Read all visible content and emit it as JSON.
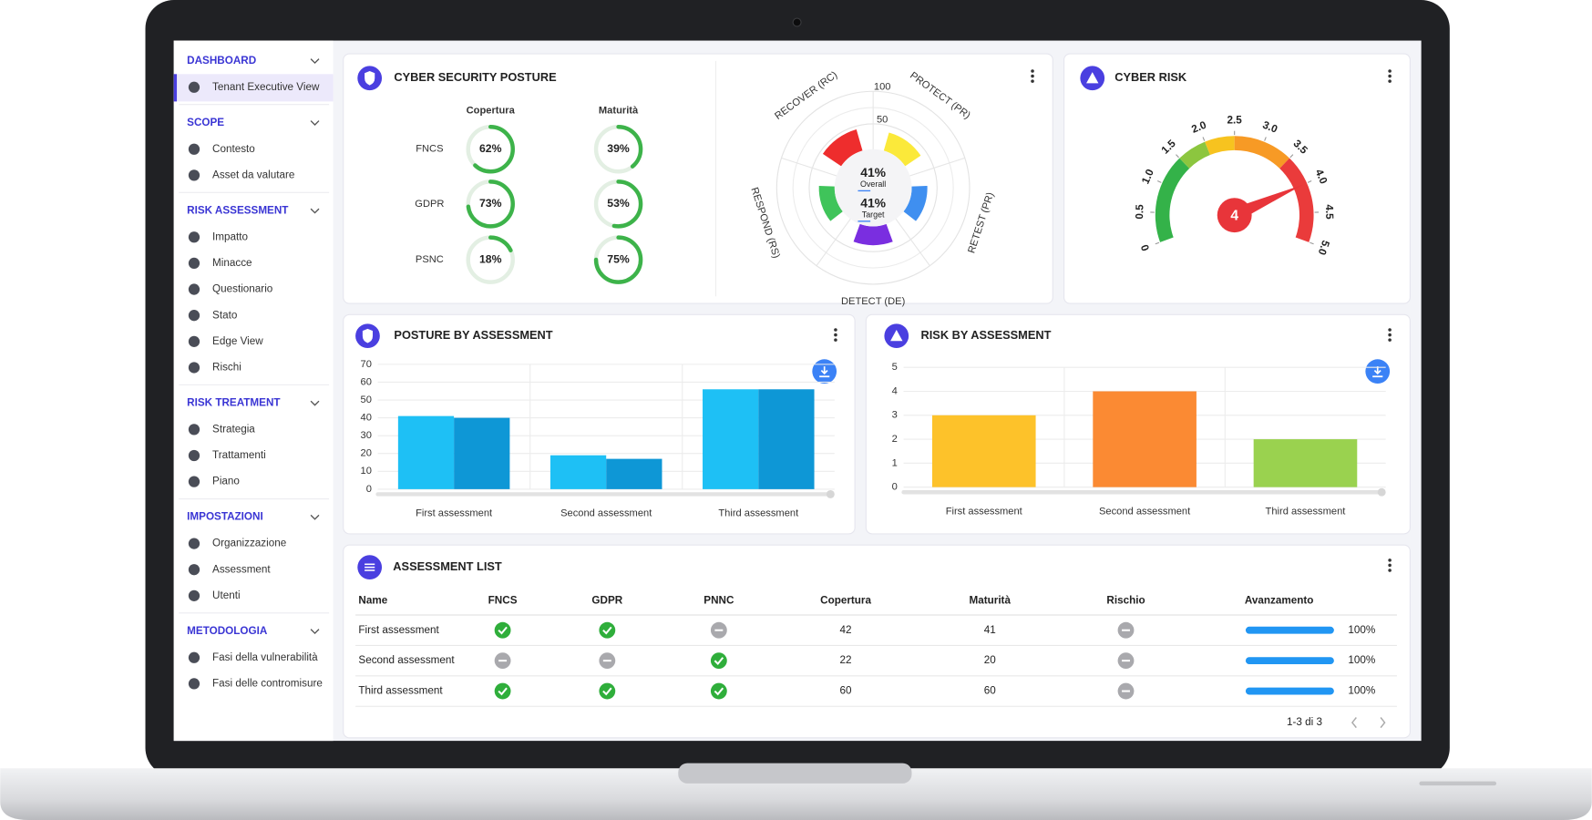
{
  "sidebar": {
    "sections": [
      {
        "title": "DASHBOARD",
        "items": [
          "Tenant Executive View"
        ]
      },
      {
        "title": "SCOPE",
        "items": [
          "Contesto",
          "Asset da valutare"
        ]
      },
      {
        "title": "RISK ASSESSMENT",
        "items": [
          "Impatto",
          "Minacce",
          "Questionario",
          "Stato",
          "Edge View",
          "Rischi"
        ]
      },
      {
        "title": "RISK TREATMENT",
        "items": [
          "Strategia",
          "Trattamenti",
          "Piano"
        ]
      },
      {
        "title": "IMPOSTAZIONI",
        "items": [
          "Organizzazione",
          "Assessment",
          "Utenti"
        ]
      },
      {
        "title": "METODOLOGIA",
        "items": [
          "Fasi della vulnerabilità",
          "Fasi delle contromisure"
        ]
      }
    ]
  },
  "chart_data": [
    {
      "type": "rings",
      "title": "CYBER SECURITY POSTURE",
      "categories": [
        "FNCS",
        "GDPR",
        "PSNC"
      ],
      "ylim": [
        0,
        100
      ],
      "series": [
        {
          "name": "Copertura",
          "color": "#3db34a",
          "values": [
            62,
            73,
            18
          ],
          "value_labels": [
            "62%",
            "73%",
            "18%"
          ]
        },
        {
          "name": "Maturità",
          "color": "#3db34a",
          "values": [
            39,
            53,
            75
          ],
          "value_labels": [
            "39%",
            "53%",
            "75%"
          ]
        }
      ]
    },
    {
      "type": "polar",
      "categories": [
        "RECOVER (RC)",
        "PROTECT (PR)",
        "RETEST (PR)",
        "DETECT (DE)",
        "RESPOND (RS)"
      ],
      "values": [
        45,
        40,
        35,
        40,
        35
      ],
      "colors": [
        "#ee2d2d",
        "#fbe93a",
        "#3f8ff0",
        "#7a2ee0",
        "#3fc45a"
      ],
      "rlim": [
        0,
        100
      ],
      "rticks": [
        50,
        100
      ],
      "center": {
        "values": [
          41,
          41
        ],
        "value_labels": [
          "41%",
          "41%"
        ],
        "names": [
          "Overall",
          "Target"
        ]
      }
    },
    {
      "type": "gauge",
      "title": "CYBER RISK",
      "value": 4,
      "ylim": [
        0,
        5
      ],
      "yticks": [
        0,
        0.5,
        {
          "value": 1,
          "label": "1.0"
        },
        1.5,
        {
          "value": 2,
          "label": "2.0"
        },
        2.5,
        {
          "value": 3,
          "label": "3.0"
        },
        3.5,
        {
          "value": 4,
          "label": "4.0"
        },
        4.5,
        {
          "value": 5,
          "label": "5.0"
        }
      ],
      "bands": [
        {
          "from": 0,
          "to": 1.5,
          "color": "#34b249"
        },
        {
          "from": 1.5,
          "to": 2,
          "color": "#8cc63f"
        },
        {
          "from": 2,
          "to": 2.5,
          "color": "#f7c31f"
        },
        {
          "from": 2.5,
          "to": 3.5,
          "color": "#f79a25"
        },
        {
          "from": 3.5,
          "to": 5,
          "color": "#ea3b3b"
        }
      ],
      "color": "#e8353a"
    },
    {
      "type": "bar",
      "title": "POSTURE BY ASSESSMENT",
      "categories": [
        "First assessment",
        "Second assessment",
        "Third assessment"
      ],
      "series": [
        {
          "color": "#1ec0f5",
          "values": [
            41,
            19,
            56
          ]
        },
        {
          "color": "#0e97d6",
          "values": [
            40,
            17,
            56
          ]
        }
      ],
      "ylim": [
        0,
        70
      ],
      "yticks": [
        0,
        10,
        20,
        30,
        40,
        50,
        60,
        70
      ],
      "grid": true
    },
    {
      "type": "bar",
      "title": "RISK BY ASSESSMENT",
      "categories": [
        "First assessment",
        "Second assessment",
        "Third assessment"
      ],
      "values": [
        3,
        4,
        2
      ],
      "colors": [
        "#fdc22a",
        "#fb8a33",
        "#9ad24f"
      ],
      "ylim": [
        0,
        5
      ],
      "yticks": [
        0,
        1,
        2,
        3,
        4,
        5
      ],
      "grid": true
    }
  ],
  "table": {
    "title": "ASSESSMENT LIST",
    "columns": [
      "Name",
      "FNCS",
      "GDPR",
      "PNNC",
      "Copertura",
      "Maturità",
      "Rischio",
      "Avanzamento"
    ],
    "rows": [
      [
        "First assessment",
        true,
        true,
        false,
        42,
        41,
        false,
        {
          "value": 100,
          "label": "100%"
        }
      ],
      [
        "Second assessment",
        false,
        false,
        true,
        22,
        20,
        false,
        {
          "value": 100,
          "label": "100%"
        }
      ],
      [
        "Third assessment",
        true,
        true,
        true,
        60,
        60,
        false,
        {
          "value": 100,
          "label": "100%"
        }
      ]
    ],
    "pagination": "1-3 di 3"
  }
}
